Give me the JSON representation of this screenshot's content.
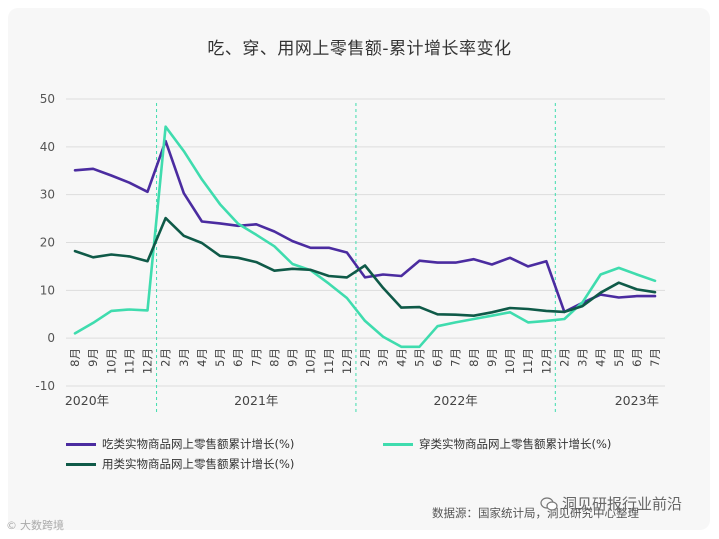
{
  "chart_data": {
    "type": "line",
    "title": "吃、穿、用网上零售额-累计增长率变化",
    "ylim": [
      -10,
      50
    ],
    "yticks": [
      -10,
      0,
      10,
      20,
      30,
      40,
      50
    ],
    "grid": true,
    "legend_position": "bottom",
    "categories": [
      "8月",
      "9月",
      "10月",
      "11月",
      "12月",
      "2月",
      "3月",
      "4月",
      "5月",
      "6月",
      "7月",
      "8月",
      "9月",
      "10月",
      "11月",
      "12月",
      "2月",
      "3月",
      "4月",
      "5月",
      "6月",
      "7月",
      "8月",
      "9月",
      "10月",
      "11月",
      "12月",
      "2月",
      "3月",
      "4月",
      "5月",
      "6月",
      "7月"
    ],
    "year_labels": [
      {
        "label": "2020年",
        "at_index": 0
      },
      {
        "label": "2021年",
        "at_index": 10
      },
      {
        "label": "2022年",
        "at_index": 21
      },
      {
        "label": "2023年",
        "at_index": 31
      }
    ],
    "year_dividers_after_index": [
      4,
      15,
      26
    ],
    "series": [
      {
        "name": "吃类实物商品网上零售额累计增长(%)",
        "color": "#4b2ca0",
        "values": [
          35.1,
          35.4,
          34.0,
          32.5,
          30.6,
          41.2,
          30.3,
          24.4,
          24.0,
          23.5,
          23.8,
          22.3,
          20.3,
          18.9,
          18.9,
          17.9,
          12.7,
          13.3,
          13.0,
          16.2,
          15.8,
          15.8,
          16.5,
          15.4,
          16.8,
          15.0,
          16.1,
          5.5,
          7.4,
          9.1,
          8.5,
          8.8,
          8.8
        ]
      },
      {
        "name": "穿类实物商品网上零售额累计增长(%)",
        "color": "#3fdcae",
        "values": [
          1.0,
          3.2,
          5.7,
          6.0,
          5.8,
          44.2,
          39.1,
          33.2,
          28.0,
          23.9,
          21.6,
          19.2,
          15.5,
          14.2,
          11.4,
          8.4,
          3.6,
          0.3,
          -1.8,
          -1.8,
          2.5,
          3.3,
          4.0,
          4.7,
          5.4,
          3.3,
          3.6,
          4.0,
          7.5,
          13.3,
          14.7,
          13.3,
          12.0
        ]
      },
      {
        "name": "用类实物商品网上零售额累计增长(%)",
        "color": "#0f5a48",
        "values": [
          18.2,
          16.9,
          17.5,
          17.1,
          16.1,
          25.1,
          21.4,
          19.9,
          17.2,
          16.8,
          15.9,
          14.1,
          14.5,
          14.3,
          13.0,
          12.7,
          15.2,
          10.5,
          6.4,
          6.5,
          5.0,
          4.9,
          4.7,
          5.4,
          6.3,
          6.1,
          5.7,
          5.5,
          6.7,
          9.5,
          11.6,
          10.2,
          9.6
        ]
      }
    ]
  },
  "legend": {
    "food": "吃类实物商品网上零售额累计增长(%)",
    "clothing": "穿类实物商品网上零售额累计增长(%)",
    "goods": "用类实物商品网上零售额累计增长(%)"
  },
  "source": "数据源：国家统计局，洞见研究中心整理",
  "watermark_right": "洞见研报行业前沿",
  "watermark_left": "大数跨境",
  "colors": {
    "food": "#4b2ca0",
    "clothing": "#3fdcae",
    "goods": "#0f5a48",
    "grid": "#dddddd",
    "divider": "#3fdcae"
  },
  "icons": {
    "watermark_right": "wechat-icon",
    "watermark_left": "copyright-icon"
  }
}
